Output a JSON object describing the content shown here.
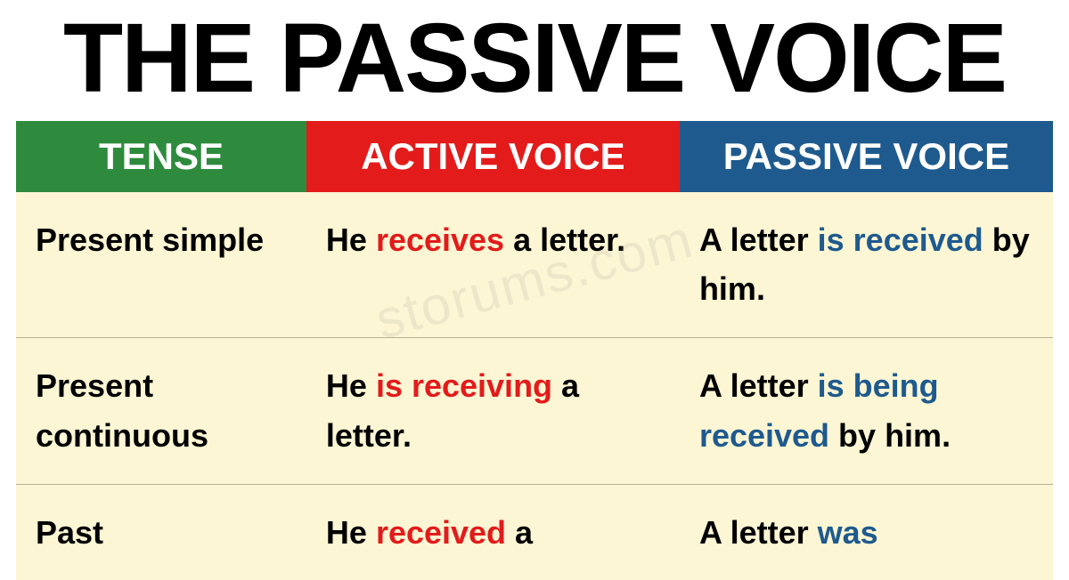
{
  "title": "THE PASSIVE VOICE",
  "colors": {
    "tense_header_bg": "#2e8b3d",
    "active_header_bg": "#e31b1b",
    "passive_header_bg": "#1e5a8e",
    "body_bg": "#fdf6d4",
    "highlight_red": "#e31b1b",
    "highlight_blue": "#1e5a8e",
    "text": "#000000",
    "border": "#b8b090"
  },
  "headers": {
    "tense": "TENSE",
    "active": "ACTIVE VOICE",
    "passive": "PASSIVE VOICE"
  },
  "rows": [
    {
      "tense": "Present simple",
      "active_pre": "He ",
      "active_hl": "receives",
      "active_post": " a letter.",
      "passive_pre": "A letter ",
      "passive_hl": "is received",
      "passive_post": " by him."
    },
    {
      "tense": "Present continuous",
      "active_pre": "He ",
      "active_hl": "is receiving",
      "active_post": " a letter.",
      "passive_pre": "A letter ",
      "passive_hl": "is being received",
      "passive_post": " by him."
    },
    {
      "tense": "Past",
      "active_pre": "He ",
      "active_hl": "received",
      "active_post": " a",
      "passive_pre": "A letter ",
      "passive_hl": "was",
      "passive_post": ""
    }
  ],
  "watermark": "storums.com"
}
